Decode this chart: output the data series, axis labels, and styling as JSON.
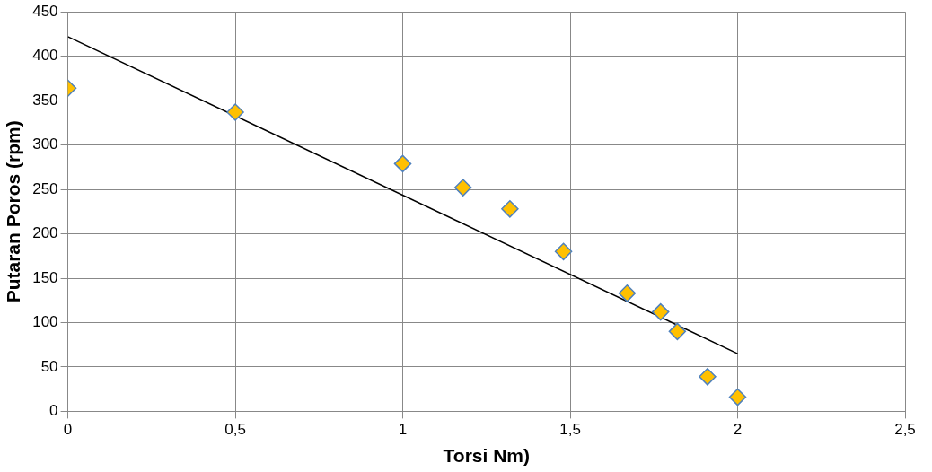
{
  "chart_data": {
    "type": "scatter",
    "xlabel": "Torsi Nm)",
    "ylabel": "Putaran Poros (rpm)",
    "xlim": [
      0,
      2.5
    ],
    "ylim": [
      0,
      450
    ],
    "xticks": [
      0,
      {
        "value": 0.5,
        "label": "0,5"
      },
      1,
      {
        "value": 1.5,
        "label": "1,5"
      },
      2,
      {
        "value": 2.5,
        "label": "2,5"
      }
    ],
    "yticks": [
      0,
      50,
      100,
      150,
      200,
      250,
      300,
      350,
      400,
      450
    ],
    "grid": true,
    "legend": false,
    "marker": "diamond",
    "series": [
      {
        "color": "#ffc000",
        "x": [
          0,
          0.5,
          1.0,
          1.18,
          1.32,
          1.48,
          1.67,
          1.77,
          1.82,
          1.91,
          2.0
        ],
        "values": [
          364,
          337,
          279,
          252,
          228,
          180,
          133,
          112,
          90,
          39,
          16
        ]
      },
      {
        "type": "line",
        "marker": "none",
        "color": "#000000",
        "x": [
          0,
          2
        ],
        "values": [
          422,
          65
        ]
      }
    ]
  }
}
